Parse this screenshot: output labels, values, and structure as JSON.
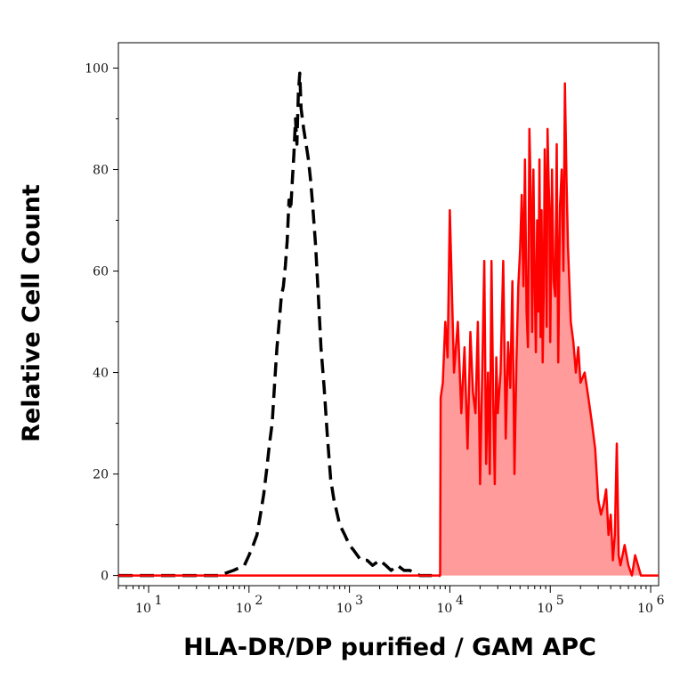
{
  "chart_data": {
    "type": "area",
    "xlabel": "HLA-DR/DP purified / GAM APC",
    "ylabel": "Relative Cell Count",
    "x_scale": "log",
    "xlim": [
      5,
      1200000
    ],
    "ylim": [
      -2,
      105
    ],
    "y_ticks": [
      {
        "value": 0,
        "label": "0"
      },
      {
        "value": 20,
        "label": "20"
      },
      {
        "value": 40,
        "label": "40"
      },
      {
        "value": 60,
        "label": "60"
      },
      {
        "value": 80,
        "label": "80"
      },
      {
        "value": 100,
        "label": "100"
      }
    ],
    "x_ticks": [
      {
        "value": 10,
        "base": "10",
        "exp": "1"
      },
      {
        "value": 100,
        "base": "10",
        "exp": "2"
      },
      {
        "value": 1000,
        "base": "10",
        "exp": "3"
      },
      {
        "value": 10000,
        "base": "10",
        "exp": "4"
      },
      {
        "value": 100000,
        "base": "10",
        "exp": "5"
      },
      {
        "value": 1000000,
        "base": "10",
        "exp": "6"
      }
    ],
    "series": [
      {
        "style": "dashed",
        "color": "#000000",
        "fill": "none",
        "points": [
          [
            5,
            0
          ],
          [
            20,
            0
          ],
          [
            50,
            0
          ],
          [
            70,
            1
          ],
          [
            90,
            2
          ],
          [
            100,
            4
          ],
          [
            110,
            6
          ],
          [
            120,
            8
          ],
          [
            130,
            12
          ],
          [
            140,
            16
          ],
          [
            150,
            21
          ],
          [
            160,
            26
          ],
          [
            170,
            30
          ],
          [
            180,
            38
          ],
          [
            190,
            45
          ],
          [
            200,
            50
          ],
          [
            210,
            55
          ],
          [
            220,
            57
          ],
          [
            230,
            61
          ],
          [
            240,
            66
          ],
          [
            250,
            74
          ],
          [
            260,
            72
          ],
          [
            270,
            78
          ],
          [
            280,
            83
          ],
          [
            290,
            90
          ],
          [
            300,
            85
          ],
          [
            310,
            95
          ],
          [
            320,
            99
          ],
          [
            330,
            92
          ],
          [
            350,
            88
          ],
          [
            370,
            85
          ],
          [
            390,
            82
          ],
          [
            410,
            78
          ],
          [
            430,
            73
          ],
          [
            460,
            65
          ],
          [
            490,
            55
          ],
          [
            520,
            45
          ],
          [
            560,
            37
          ],
          [
            600,
            28
          ],
          [
            650,
            19
          ],
          [
            700,
            15
          ],
          [
            800,
            10
          ],
          [
            900,
            8
          ],
          [
            1000,
            6
          ],
          [
            1100,
            5
          ],
          [
            1300,
            3
          ],
          [
            1500,
            3
          ],
          [
            1700,
            2
          ],
          [
            2000,
            3
          ],
          [
            2300,
            2
          ],
          [
            2600,
            1
          ],
          [
            3000,
            2
          ],
          [
            3500,
            1
          ],
          [
            4000,
            1
          ],
          [
            5000,
            0
          ],
          [
            6000,
            0
          ],
          [
            7000,
            0
          ],
          [
            8000,
            0
          ]
        ]
      },
      {
        "style": "solid",
        "color": "#ff0000",
        "fill": "#ff9b9b",
        "points": [
          [
            5,
            0
          ],
          [
            8000,
            0
          ],
          [
            8100,
            35
          ],
          [
            8500,
            38
          ],
          [
            9000,
            50
          ],
          [
            9500,
            43
          ],
          [
            10000,
            72
          ],
          [
            11000,
            40
          ],
          [
            12000,
            50
          ],
          [
            13000,
            32
          ],
          [
            14000,
            45
          ],
          [
            15000,
            25
          ],
          [
            16000,
            48
          ],
          [
            17000,
            36
          ],
          [
            18000,
            32
          ],
          [
            19000,
            50
          ],
          [
            20000,
            18
          ],
          [
            21000,
            40
          ],
          [
            22000,
            62
          ],
          [
            23000,
            22
          ],
          [
            24000,
            40
          ],
          [
            25000,
            20
          ],
          [
            26000,
            62
          ],
          [
            27000,
            35
          ],
          [
            28000,
            18
          ],
          [
            29000,
            43
          ],
          [
            30000,
            32
          ],
          [
            32000,
            40
          ],
          [
            34000,
            62
          ],
          [
            36000,
            27
          ],
          [
            38000,
            46
          ],
          [
            40000,
            37
          ],
          [
            42000,
            58
          ],
          [
            44000,
            20
          ],
          [
            46000,
            42
          ],
          [
            48000,
            57
          ],
          [
            50000,
            64
          ],
          [
            52000,
            75
          ],
          [
            54000,
            57
          ],
          [
            56000,
            82
          ],
          [
            58000,
            52
          ],
          [
            60000,
            45
          ],
          [
            62000,
            88
          ],
          [
            64000,
            75
          ],
          [
            66000,
            48
          ],
          [
            68000,
            80
          ],
          [
            70000,
            57
          ],
          [
            72000,
            44
          ],
          [
            74000,
            70
          ],
          [
            76000,
            52
          ],
          [
            78000,
            82
          ],
          [
            80000,
            47
          ],
          [
            82000,
            72
          ],
          [
            84000,
            42
          ],
          [
            86000,
            56
          ],
          [
            88000,
            84
          ],
          [
            90000,
            74
          ],
          [
            92000,
            49
          ],
          [
            94000,
            88
          ],
          [
            96000,
            79
          ],
          [
            98000,
            72
          ],
          [
            100000,
            46
          ],
          [
            104000,
            80
          ],
          [
            108000,
            58
          ],
          [
            112000,
            55
          ],
          [
            116000,
            85
          ],
          [
            120000,
            42
          ],
          [
            125000,
            73
          ],
          [
            130000,
            80
          ],
          [
            135000,
            60
          ],
          [
            140000,
            97
          ],
          [
            145000,
            78
          ],
          [
            150000,
            65
          ],
          [
            160000,
            50
          ],
          [
            170000,
            46
          ],
          [
            180000,
            40
          ],
          [
            190000,
            45
          ],
          [
            200000,
            38
          ],
          [
            220000,
            40
          ],
          [
            240000,
            35
          ],
          [
            260000,
            30
          ],
          [
            280000,
            25
          ],
          [
            300000,
            15
          ],
          [
            320000,
            12
          ],
          [
            340000,
            14
          ],
          [
            360000,
            17
          ],
          [
            380000,
            8
          ],
          [
            400000,
            12
          ],
          [
            420000,
            3
          ],
          [
            440000,
            8
          ],
          [
            460000,
            26
          ],
          [
            480000,
            4
          ],
          [
            500000,
            2
          ],
          [
            550000,
            6
          ],
          [
            600000,
            2
          ],
          [
            650000,
            0
          ],
          [
            700000,
            4
          ],
          [
            800000,
            0
          ],
          [
            1200000,
            0
          ]
        ]
      }
    ],
    "grid": false,
    "legend": "none"
  }
}
